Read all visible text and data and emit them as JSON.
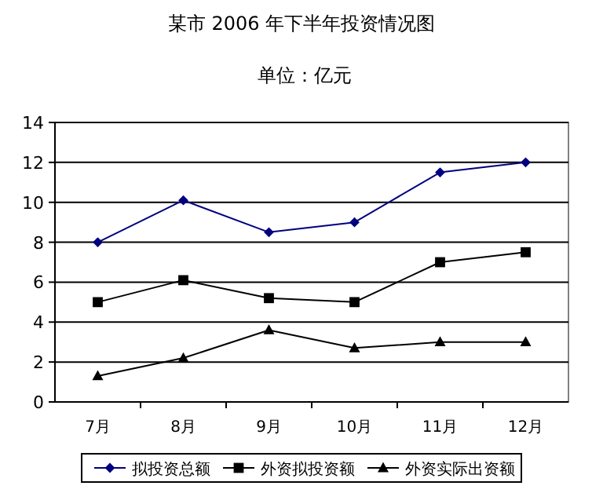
{
  "chart_data": {
    "type": "line",
    "title": "某市 2006 年下半年投资情况图",
    "subtitle": "单位：亿元",
    "categories": [
      "7月",
      "8月",
      "9月",
      "10月",
      "11月",
      "12月"
    ],
    "series": [
      {
        "name": "拟投资总额",
        "color": "#000080",
        "marker": "diamond",
        "values": [
          8,
          10.1,
          8.5,
          9,
          11.5,
          12
        ]
      },
      {
        "name": "外资拟投资额",
        "color": "#000000",
        "marker": "square",
        "values": [
          5,
          6.1,
          5.2,
          5,
          7,
          7.5
        ]
      },
      {
        "name": "外资实际出资额",
        "color": "#000000",
        "marker": "triangle",
        "values": [
          1.3,
          2.2,
          3.6,
          2.7,
          3,
          3
        ]
      }
    ],
    "ylim": [
      0,
      14
    ],
    "yticks": [
      0,
      2,
      4,
      6,
      8,
      10,
      12,
      14
    ],
    "grid": "y",
    "legend": "bottom",
    "line_style": "solid"
  }
}
